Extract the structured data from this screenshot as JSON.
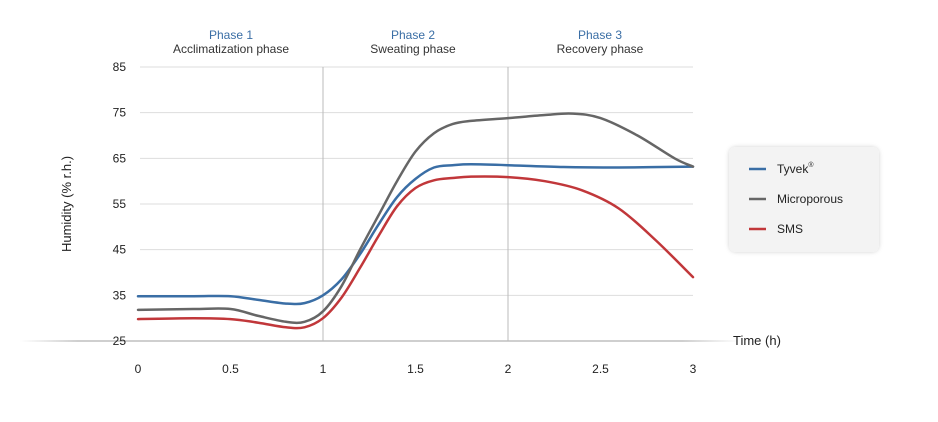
{
  "chart_data": {
    "type": "line",
    "xlabel": "Time (h)",
    "ylabel": "Humidity (% r.h.)",
    "xlim": [
      0,
      3
    ],
    "ylim": [
      25,
      85
    ],
    "x_ticks": [
      "0",
      "0.5",
      "1",
      "1.5",
      "2",
      "2.5",
      "3"
    ],
    "y_ticks": [
      "25",
      "35",
      "45",
      "55",
      "65",
      "75",
      "85"
    ],
    "grid": "horizontal",
    "legend_position": "right",
    "phase_dividers": [
      1,
      2
    ],
    "phases": [
      {
        "title": "Phase 1",
        "subtitle": "Acclimatization phase"
      },
      {
        "title": "Phase 2",
        "subtitle": "Sweating phase"
      },
      {
        "title": "Phase 3",
        "subtitle": "Recovery phase"
      }
    ],
    "series": [
      {
        "name": "Tyvek",
        "name_sup": "®",
        "color": "#3a6ea5",
        "x": [
          0,
          0.3,
          0.5,
          0.65,
          0.8,
          0.9,
          1.0,
          1.1,
          1.2,
          1.3,
          1.4,
          1.5,
          1.6,
          1.7,
          1.8,
          2.0,
          2.3,
          2.6,
          3.0
        ],
        "y": [
          34.8,
          34.8,
          34.8,
          34.0,
          33.2,
          33.3,
          35.0,
          38.5,
          44.0,
          50.5,
          56.5,
          60.5,
          63.0,
          63.5,
          63.7,
          63.5,
          63.1,
          63.0,
          63.2
        ]
      },
      {
        "name": "Microporous",
        "color": "#666666",
        "x": [
          0,
          0.3,
          0.5,
          0.65,
          0.8,
          0.9,
          1.0,
          1.1,
          1.2,
          1.3,
          1.4,
          1.5,
          1.6,
          1.7,
          1.8,
          2.0,
          2.2,
          2.35,
          2.5,
          2.7,
          2.9,
          3.0
        ],
        "y": [
          31.8,
          32.0,
          32.0,
          30.5,
          29.2,
          29.2,
          31.5,
          37.0,
          45.0,
          52.5,
          60.0,
          66.5,
          70.5,
          72.5,
          73.2,
          73.8,
          74.5,
          74.8,
          73.8,
          70.0,
          65.0,
          63.2
        ]
      },
      {
        "name": "SMS",
        "color": "#c1373a",
        "x": [
          0,
          0.3,
          0.5,
          0.65,
          0.8,
          0.9,
          1.0,
          1.1,
          1.2,
          1.3,
          1.4,
          1.5,
          1.6,
          1.7,
          1.8,
          2.0,
          2.2,
          2.4,
          2.6,
          2.8,
          3.0
        ],
        "y": [
          29.8,
          30.0,
          29.8,
          29.0,
          28.0,
          28.0,
          30.0,
          34.5,
          41.0,
          48.0,
          54.5,
          58.5,
          60.2,
          60.7,
          61.0,
          60.9,
          60.0,
          58.0,
          54.0,
          47.0,
          39.0
        ]
      }
    ]
  }
}
